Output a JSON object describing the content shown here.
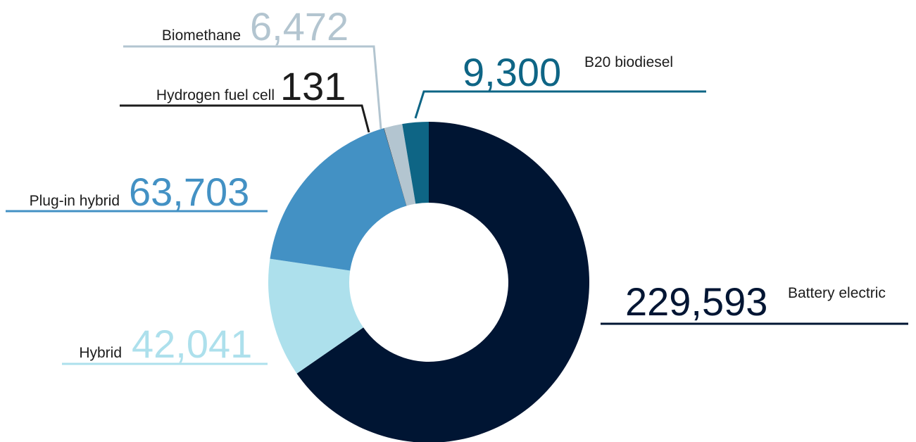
{
  "chart_data": {
    "type": "donut",
    "categories": [
      "Battery electric",
      "Hybrid",
      "Plug-in hybrid",
      "Hydrogen fuel cell",
      "Biomethane",
      "B20 biodiesel"
    ],
    "values": [
      229593,
      42041,
      63703,
      131,
      6472,
      9300
    ],
    "value_labels": [
      "229,593",
      "42,041",
      "63,703",
      "131",
      "6,472",
      "9,300"
    ],
    "colors": [
      "#001533",
      "#ade0ec",
      "#4391c4",
      "#1c1c1c",
      "#b3c5d0",
      "#0e6585"
    ]
  }
}
